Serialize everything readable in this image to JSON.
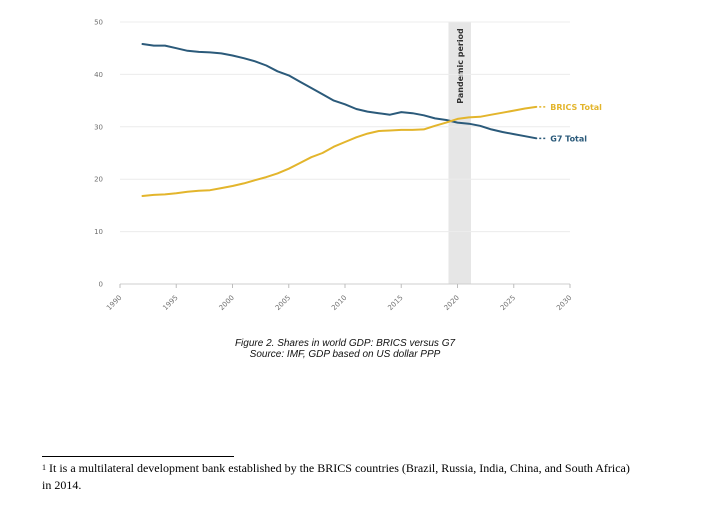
{
  "chart_data": {
    "type": "line",
    "title": "",
    "xlabel": "",
    "ylabel": "",
    "xlim": [
      1990,
      2030
    ],
    "ylim": [
      0,
      50
    ],
    "x_ticks": [
      1990,
      1995,
      2000,
      2005,
      2010,
      2015,
      2020,
      2025,
      2030
    ],
    "y_ticks": [
      0,
      10,
      20,
      30,
      40,
      50
    ],
    "grid": "horizontal",
    "series": [
      {
        "name": "G7 Total",
        "color": "#2b5a7a",
        "x": [
          1992,
          1993,
          1994,
          1995,
          1996,
          1997,
          1998,
          1999,
          2000,
          2001,
          2002,
          2003,
          2004,
          2005,
          2006,
          2007,
          2008,
          2009,
          2010,
          2011,
          2012,
          2013,
          2014,
          2015,
          2016,
          2017,
          2018,
          2019,
          2020,
          2021,
          2022,
          2023,
          2024,
          2025,
          2026,
          2027
        ],
        "values": [
          45.8,
          45.5,
          45.5,
          45.0,
          44.5,
          44.3,
          44.2,
          44.0,
          43.6,
          43.1,
          42.5,
          41.7,
          40.6,
          39.8,
          38.6,
          37.4,
          36.2,
          35.0,
          34.3,
          33.4,
          32.9,
          32.6,
          32.3,
          32.8,
          32.6,
          32.2,
          31.6,
          31.3,
          30.8,
          30.6,
          30.2,
          29.5,
          29.0,
          28.6,
          28.2,
          27.8
        ]
      },
      {
        "name": "BRICS Total",
        "color": "#e3b52c",
        "x": [
          1992,
          1993,
          1994,
          1995,
          1996,
          1997,
          1998,
          1999,
          2000,
          2001,
          2002,
          2003,
          2004,
          2005,
          2006,
          2007,
          2008,
          2009,
          2010,
          2011,
          2012,
          2013,
          2014,
          2015,
          2016,
          2017,
          2018,
          2019,
          2020,
          2021,
          2022,
          2023,
          2024,
          2025,
          2026,
          2027
        ],
        "values": [
          16.8,
          17.0,
          17.1,
          17.3,
          17.6,
          17.8,
          17.9,
          18.3,
          18.7,
          19.2,
          19.8,
          20.4,
          21.1,
          22.0,
          23.1,
          24.2,
          25.0,
          26.2,
          27.1,
          28.0,
          28.7,
          29.2,
          29.3,
          29.4,
          29.4,
          29.5,
          30.2,
          30.8,
          31.5,
          31.8,
          31.9,
          32.3,
          32.7,
          33.1,
          33.5,
          33.8
        ]
      }
    ],
    "annotations": [
      {
        "label": "Pandemic period",
        "x_start": 2019.2,
        "x_end": 2021.2,
        "color": "#e6e6e6"
      }
    ]
  },
  "caption": {
    "line1": "Figure 2. Shares in world GDP: BRICS versus G7",
    "line2": "Source: IMF, GDP based on US dollar PPP"
  },
  "footnote": {
    "marker": "1",
    "text": "It is a multilateral development bank established by the BRICS countries (Brazil, Russia, India, China, and South Africa) in 2014."
  }
}
